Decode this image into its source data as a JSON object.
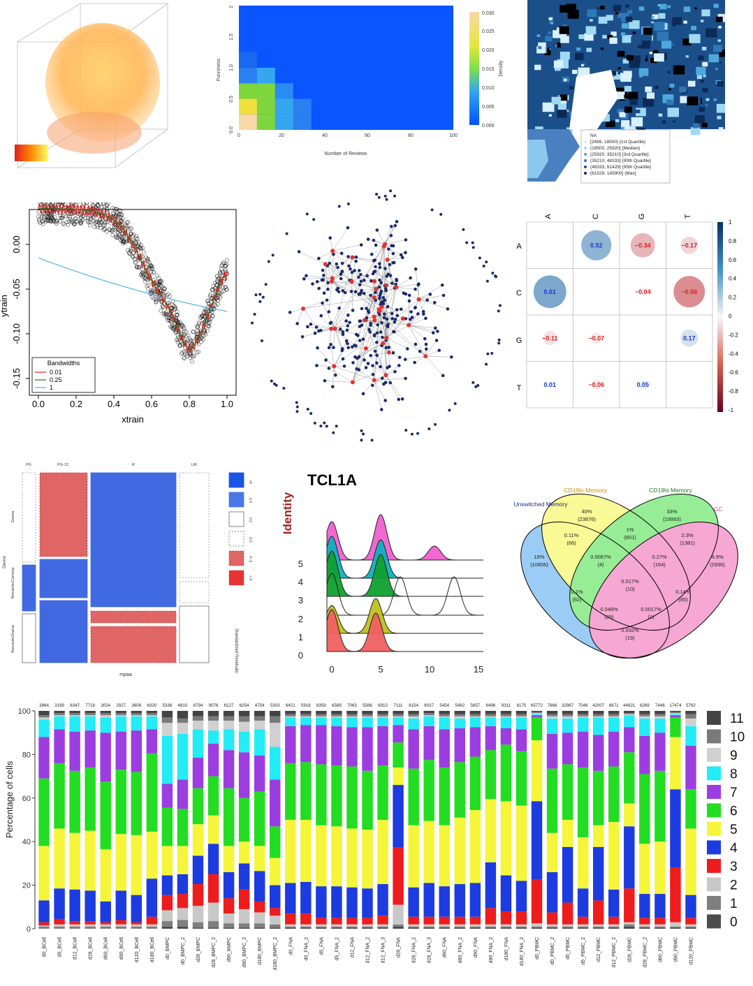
{
  "heatmap2d": {
    "xlabel": "Number of Reviews",
    "ylabel": "Funniness",
    "legend_title": "Density",
    "xticks": [
      "0",
      "20",
      "40",
      "60",
      "80",
      "100"
    ],
    "yticks": [
      "0.0",
      "0.5",
      "1.0",
      "1.5",
      "2"
    ],
    "legend_ticks": [
      "0.030",
      "0.025",
      "0.020",
      "0.015",
      "0.010",
      "0.005",
      "0.000"
    ]
  },
  "choropleth": {
    "legend": [
      "NA",
      "[2499, 18500] {1st Quartile}",
      "(18500, 25920] {Median}",
      "(25920, 35210] {3rd Quartile}",
      "(35210, 48333] {90th Quartile}",
      "(48333, 61429] {95th Quartile}",
      "(61529, 145900] {Max}"
    ]
  },
  "smoother": {
    "xlabel": "xtrain",
    "ylabel": "ytrain",
    "xticks": [
      "0.0",
      "0.2",
      "0.4",
      "0.6",
      "0.8",
      "1.0"
    ],
    "yticks": [
      "0.00",
      "-0.05",
      "-0.10",
      "-0.15"
    ],
    "legend_title": "Bandwidths",
    "legend": [
      "0.01",
      "0.25",
      "1"
    ],
    "legend_colors": [
      "#e41a1c",
      "#1a7a1a",
      "#4fb3e8"
    ]
  },
  "corrplot": {
    "rows": [
      "A",
      "C",
      "G",
      "T"
    ],
    "cols": [
      "A",
      "C",
      "G",
      "T"
    ],
    "colorbar_ticks": [
      "1",
      "0.8",
      "0.6",
      "0.4",
      "0.2",
      "0",
      "-0.2",
      "-0.4",
      "-0.6",
      "-0.8",
      "-1"
    ],
    "cells": [
      {
        "r": 0,
        "c": 1,
        "v": "0.52"
      },
      {
        "r": 0,
        "c": 2,
        "v": "−0.34"
      },
      {
        "r": 0,
        "c": 3,
        "v": "−0.17"
      },
      {
        "r": 1,
        "c": 0,
        "v": "0.61"
      },
      {
        "r": 1,
        "c": 2,
        "v": "−0.04"
      },
      {
        "r": 1,
        "c": 3,
        "v": "−0.56"
      },
      {
        "r": 2,
        "c": 0,
        "v": "−0.11"
      },
      {
        "r": 2,
        "c": 1,
        "v": "−0.07"
      },
      {
        "r": 2,
        "c": 3,
        "v": "0.17"
      },
      {
        "r": 3,
        "c": 0,
        "v": "0.01"
      },
      {
        "r": 3,
        "c": 1,
        "v": "−0.06"
      },
      {
        "r": 3,
        "c": 2,
        "v": "0.05"
      }
    ]
  },
  "mosaic": {
    "cols": [
      "PG",
      "PG-13",
      "R",
      "UR"
    ],
    "rows": [
      "Drama",
      "Romantic/Comedy",
      "RomanticDrama"
    ],
    "xlabel": "mpaa",
    "ylabel": "Genre",
    "legend_title": "Standardized Residuals:",
    "legend": [
      ">4",
      "2:4",
      "0:2",
      "-2:0",
      "-4:-2",
      "<-4"
    ]
  },
  "ridge": {
    "title": "TCL1A",
    "ylabel": "Identity",
    "labels": [
      "0",
      "1",
      "2",
      "3",
      "4",
      "5"
    ],
    "xticks": [
      "0",
      "5",
      "10",
      "15"
    ]
  },
  "venn": {
    "sets": [
      "Unswitched Memory",
      "CD19lo Memory",
      "CD19hi Memory",
      "GC"
    ],
    "regions": [
      {
        "p": "18%",
        "n": "(10806)"
      },
      {
        "p": "40%",
        "n": "(23876)"
      },
      {
        "p": "33%",
        "n": "(19993)"
      },
      {
        "p": "4.9%",
        "n": "(2936)"
      },
      {
        "p": "0.11%",
        "n": "(66)"
      },
      {
        "p": "1%",
        "n": "(601)"
      },
      {
        "p": "2.3%",
        "n": "(1381)"
      },
      {
        "p": "0.0067%",
        "n": "(4)"
      },
      {
        "p": "0.27%",
        "n": "(164)"
      },
      {
        "p": "0.017%",
        "n": "(10)"
      },
      {
        "p": "0.1%",
        "n": "(62)"
      },
      {
        "p": "0.14%",
        "n": "(85)"
      },
      {
        "p": "0.048%",
        "n": "(29)"
      },
      {
        "p": "0.0017%",
        "n": "(1)"
      },
      {
        "p": "0.032%",
        "n": "(19)"
      }
    ]
  },
  "chart_data": [
    {
      "type": "heatmap",
      "xlabel": "Number of Reviews",
      "ylabel": "Funniness",
      "xlim": [
        0,
        100
      ],
      "ylim": [
        0,
        2
      ],
      "legend": "Density",
      "zlim": [
        0,
        0.03
      ]
    },
    {
      "type": "scatter",
      "xlabel": "xtrain",
      "ylabel": "ytrain",
      "xlim": [
        0,
        1
      ],
      "ylim": [
        -0.16,
        0.02
      ],
      "series": [
        {
          "name": "0.01"
        },
        {
          "name": "0.25"
        },
        {
          "name": "1"
        }
      ]
    },
    {
      "type": "heatmap",
      "rows": [
        "A",
        "C",
        "G",
        "T"
      ],
      "cols": [
        "A",
        "C",
        "G",
        "T"
      ],
      "values": [
        [
          null,
          0.52,
          -0.34,
          -0.17
        ],
        [
          0.61,
          null,
          -0.04,
          -0.56
        ],
        [
          -0.11,
          -0.07,
          null,
          0.17
        ],
        [
          0.01,
          -0.06,
          0.05,
          null
        ]
      ]
    },
    {
      "type": "bar",
      "ylabel": "Percentage of cells",
      "ylim": [
        0,
        100
      ],
      "categories": [
        "d0_BCell",
        "d5_BCell",
        "d12_BCell",
        "d28_BCell",
        "d60_BCell",
        "d90_BCell",
        "d120_BCell",
        "d180_BCell",
        "d0_BMPC",
        "d0_BMPC_2",
        "d28_BMPC",
        "d28_BMPC_2",
        "d90_BMPC",
        "d90_BMPC_2",
        "d180_BMPC",
        "d180_BMPC_2",
        "d0_FNA",
        "d0_FNA_2",
        "d5_FNA",
        "d5_FNA_2",
        "d12_FNA",
        "d12_FNA_2",
        "d12_FNA_3",
        "d28_FNA",
        "d28_FNA_2",
        "d28_FNA_3",
        "d60_FNA",
        "d60_FNA_2",
        "d90_FNA",
        "d90_FNA_2",
        "d180_FNA",
        "d180_FNA_2",
        "d0_PBMC",
        "d0_PBMC_2",
        "d5_PBMC",
        "d5_PBMC_2",
        "d12_PBMC",
        "d12_PBMC_2",
        "d28_PBMC",
        "d28_PBMC_2",
        "d60_PBMC",
        "d90_PBMC",
        "d120_PBMC"
      ],
      "totals": [
        "3864",
        "3199",
        "6347",
        "7718",
        "3024",
        "2927",
        "3608",
        "6320",
        "5336",
        "4810",
        "8794",
        "9076",
        "6127",
        "6254",
        "4754",
        "5303",
        "6421",
        "5916",
        "8359",
        "6589",
        "7063",
        "5566",
        "6910",
        "7111",
        "6154",
        "6037",
        "5454",
        "5492",
        "5657",
        "6498",
        "9311",
        "6170",
        "65772",
        "7866",
        "32987",
        "7046",
        "42007",
        "6671",
        "44921",
        "6269",
        "7446",
        "17474",
        "5762"
      ],
      "legend": [
        "11",
        "10",
        "9",
        "8",
        "7",
        "6",
        "5",
        "4",
        "3",
        "2",
        "1",
        "0"
      ],
      "colors": {
        "0": "#4d4d4d",
        "1": "#7f7f7f",
        "2": "#c8c8c8",
        "3": "#ee1c1c",
        "4": "#1c3be0",
        "5": "#f5f53a",
        "6": "#22dd22",
        "7": "#9b3de0",
        "8": "#22ecf5",
        "9": "#d0d0d0",
        "10": "#7a7a7a",
        "11": "#444444"
      },
      "series_cum": [
        [
          0,
          1,
          1.5,
          3,
          13,
          38,
          69,
          88,
          96,
          97,
          98,
          100
        ],
        [
          0,
          1,
          2,
          4.5,
          18.5,
          46,
          76,
          91.5,
          97.5,
          98,
          99,
          100
        ],
        [
          0,
          1,
          2,
          3.5,
          18,
          44,
          72.5,
          90.5,
          97.5,
          98,
          99,
          100
        ],
        [
          0,
          1,
          2,
          3.5,
          17.5,
          45,
          74,
          91,
          97.5,
          98,
          99,
          100
        ],
        [
          0,
          1,
          2,
          3,
          12.5,
          36.5,
          67.5,
          90,
          97,
          98,
          99,
          100
        ],
        [
          0,
          1,
          2,
          4,
          17.5,
          43.5,
          73,
          90.5,
          97.5,
          98,
          99,
          100
        ],
        [
          0,
          1,
          2,
          3,
          15.5,
          43,
          72,
          91,
          97.5,
          98,
          99,
          100
        ],
        [
          0,
          1,
          2,
          5.5,
          23,
          44.5,
          80.5,
          91.5,
          97.5,
          98,
          99,
          100
        ],
        [
          1,
          3.5,
          8.5,
          15.5,
          24.5,
          38,
          55.5,
          66.5,
          88.5,
          94.5,
          97,
          100
        ],
        [
          1,
          4,
          9.5,
          16,
          25,
          38,
          55,
          68.5,
          89.5,
          94.5,
          96.5,
          100
        ],
        [
          0.5,
          3,
          10.5,
          20.5,
          33.5,
          48,
          64.5,
          78.5,
          91.5,
          95.5,
          97.5,
          100
        ],
        [
          0.5,
          3.5,
          12,
          25,
          39,
          52,
          70,
          85,
          91,
          95.5,
          97.5,
          100
        ],
        [
          0.5,
          2.5,
          7,
          14,
          26,
          38,
          64.5,
          82,
          91.5,
          95.5,
          97.5,
          100
        ],
        [
          0.5,
          2.5,
          9,
          18,
          30,
          40,
          60,
          81,
          90.5,
          95,
          97.5,
          100
        ],
        [
          0.5,
          2.5,
          7.5,
          12.5,
          26.5,
          38,
          63,
          79.5,
          91.5,
          95.5,
          97.5,
          100
        ],
        [
          0.5,
          2,
          6,
          9.5,
          20,
          32.5,
          47,
          68.5,
          83.5,
          94.5,
          97.5,
          100
        ],
        [
          0.5,
          1,
          2,
          7,
          21,
          50,
          76,
          93,
          97,
          97.5,
          98.5,
          100
        ],
        [
          0.5,
          1,
          2,
          7,
          21.5,
          50,
          76.5,
          93.5,
          97,
          97.5,
          98.5,
          100
        ],
        [
          0.5,
          1,
          2,
          5,
          19.5,
          47.5,
          75.5,
          93.5,
          97,
          97.5,
          98.5,
          100
        ],
        [
          0.5,
          1,
          2,
          5,
          19.5,
          47,
          75,
          93,
          97,
          97.5,
          98.5,
          100
        ],
        [
          0.5,
          1,
          2,
          5,
          19,
          46,
          74.5,
          92.5,
          97,
          97.5,
          98.5,
          100
        ],
        [
          0.5,
          1,
          2,
          5,
          18.5,
          45.5,
          72.5,
          92.5,
          97,
          97.5,
          98.5,
          100
        ],
        [
          0.5,
          1,
          2,
          6,
          20.5,
          50,
          75,
          93,
          97,
          97.5,
          98.5,
          100
        ],
        [
          1,
          2,
          11,
          37.5,
          66,
          74,
          85.5,
          93.5,
          97,
          97.5,
          98.5,
          100
        ],
        [
          0.5,
          1,
          2,
          5.5,
          19,
          47.5,
          73.5,
          91.5,
          96.5,
          97.5,
          98.5,
          100
        ],
        [
          0.5,
          1,
          2,
          5.5,
          21,
          49.5,
          77.5,
          93,
          97.5,
          98,
          99,
          100
        ],
        [
          0.5,
          1,
          2,
          5.5,
          19.5,
          47.5,
          74,
          91.5,
          97,
          97.5,
          98.5,
          100
        ],
        [
          0.5,
          1,
          2,
          5.5,
          20.5,
          51,
          76.5,
          92,
          96.5,
          97.5,
          98.5,
          100
        ],
        [
          0.5,
          1,
          2,
          5.5,
          21,
          54.5,
          79,
          92.5,
          97,
          97.5,
          98.5,
          100
        ],
        [
          0.5,
          1,
          2,
          9.5,
          30.5,
          59.5,
          82,
          93,
          97,
          97.5,
          98.5,
          100
        ],
        [
          0.5,
          1,
          2,
          8,
          24.5,
          58.5,
          84.5,
          92,
          97,
          97.5,
          98.5,
          100
        ],
        [
          0.5,
          1,
          2,
          8,
          22,
          56.5,
          81.5,
          91.5,
          97,
          97.5,
          98.5,
          100
        ],
        [
          0.5,
          1,
          2.5,
          22.5,
          58.5,
          86.5,
          97,
          98,
          98.5,
          99,
          99.5,
          100
        ],
        [
          0.5,
          1,
          2,
          7.5,
          26,
          44,
          73.5,
          89.5,
          96.5,
          97.5,
          98.5,
          100
        ],
        [
          0.5,
          1,
          2,
          12,
          37.5,
          50,
          75.5,
          90,
          96.5,
          97.5,
          98.5,
          100
        ],
        [
          0.5,
          1,
          2,
          5.5,
          18.5,
          42,
          74,
          90.5,
          97,
          97.5,
          98.5,
          100
        ],
        [
          0.5,
          1,
          2,
          13,
          37.5,
          47.5,
          72.5,
          89,
          97,
          97.5,
          98.5,
          100
        ],
        [
          0.5,
          1,
          2,
          5.5,
          18,
          49,
          74.5,
          90.5,
          97,
          97.5,
          98.5,
          100
        ],
        [
          1,
          2,
          3,
          18.5,
          47,
          57.5,
          81,
          92.5,
          98,
          98.5,
          99,
          100
        ],
        [
          0.5,
          1,
          2,
          5,
          16,
          39,
          71,
          88.5,
          96.5,
          97.5,
          98.5,
          100
        ],
        [
          0.5,
          1,
          2,
          5,
          16,
          40,
          72.5,
          90,
          96.5,
          97.5,
          98.5,
          100
        ],
        [
          0.5,
          1,
          3,
          28,
          64,
          88,
          97,
          98,
          98.5,
          99,
          99.5,
          100
        ],
        [
          0.5,
          1,
          2,
          5,
          15.5,
          46,
          64,
          84,
          93,
          96.5,
          98.5,
          100
        ]
      ]
    }
  ]
}
